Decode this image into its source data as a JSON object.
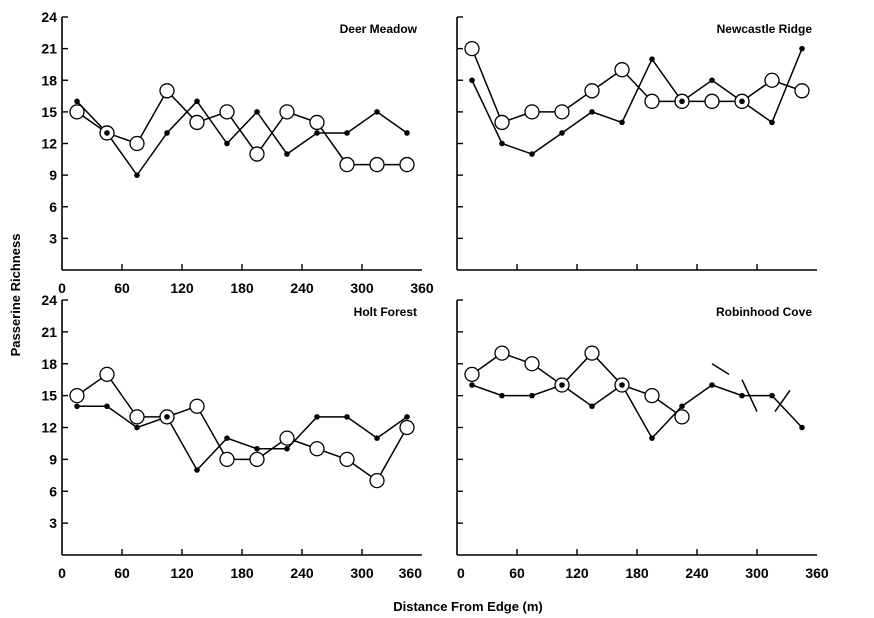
{
  "figure": {
    "xlabel": "Distance From Edge (m)",
    "ylabel": "Passerine Richness"
  },
  "chart_data": [
    {
      "type": "line",
      "title": "Deer Meadow",
      "xlim": [
        0,
        360
      ],
      "ylim": [
        0,
        24
      ],
      "xticks": [
        "0",
        "60",
        "120",
        "180",
        "240",
        "300",
        "360"
      ],
      "yticks": [
        "3",
        "6",
        "9",
        "12",
        "15",
        "18",
        "21",
        "24"
      ],
      "x": [
        15,
        45,
        75,
        105,
        135,
        165,
        195,
        225,
        255,
        285,
        315,
        345
      ],
      "series": [
        {
          "marker": "filled",
          "values": [
            16,
            13,
            9,
            13,
            16,
            12,
            15,
            11,
            13,
            13,
            15,
            13
          ]
        },
        {
          "marker": "open",
          "values": [
            15,
            13,
            12,
            17,
            14,
            15,
            11,
            15,
            14,
            10,
            10,
            10
          ]
        }
      ]
    },
    {
      "type": "line",
      "title": "Newcastle Ridge",
      "xlim": [
        0,
        360
      ],
      "ylim": [
        0,
        24
      ],
      "xticks": [],
      "yticks": [],
      "x": [
        15,
        45,
        75,
        105,
        135,
        165,
        195,
        225,
        255,
        285,
        315,
        345
      ],
      "series": [
        {
          "marker": "filled",
          "values": [
            18,
            12,
            11,
            13,
            15,
            14,
            20,
            16,
            18,
            16,
            14,
            21
          ]
        },
        {
          "marker": "open",
          "values": [
            21,
            14,
            15,
            15,
            17,
            19,
            16,
            16,
            16,
            16,
            18,
            17
          ]
        }
      ]
    },
    {
      "type": "line",
      "title": "Holt Forest",
      "xlim": [
        0,
        360
      ],
      "ylim": [
        0,
        24
      ],
      "xticks": [
        "0",
        "60",
        "120",
        "180",
        "240",
        "300",
        "360"
      ],
      "yticks": [
        "3",
        "6",
        "9",
        "12",
        "15",
        "18",
        "21",
        "24"
      ],
      "x": [
        15,
        45,
        75,
        105,
        135,
        165,
        195,
        225,
        255,
        285,
        315,
        345
      ],
      "series": [
        {
          "marker": "filled",
          "values": [
            14,
            14,
            12,
            13,
            8,
            11,
            10,
            10,
            13,
            13,
            11,
            13
          ]
        },
        {
          "marker": "open",
          "values": [
            15,
            17,
            13,
            13,
            14,
            9,
            9,
            11,
            10,
            9,
            7,
            12
          ]
        }
      ]
    },
    {
      "type": "line",
      "title": "Robinhood Cove",
      "xlim": [
        0,
        360
      ],
      "ylim": [
        0,
        24
      ],
      "xticks": [
        "0",
        "60",
        "120",
        "180",
        "240",
        "300",
        "360"
      ],
      "yticks": [],
      "x": [
        15,
        45,
        75,
        105,
        135,
        165,
        195,
        225,
        255,
        285,
        315,
        345
      ],
      "series": [
        {
          "marker": "filled",
          "values": [
            16,
            15,
            15,
            16,
            14,
            16,
            11,
            14,
            16,
            15,
            15,
            12
          ]
        },
        {
          "marker": "open",
          "values": [
            17,
            19,
            18,
            16,
            19,
            16,
            15,
            13,
            null,
            null,
            null,
            null
          ]
        }
      ]
    }
  ]
}
